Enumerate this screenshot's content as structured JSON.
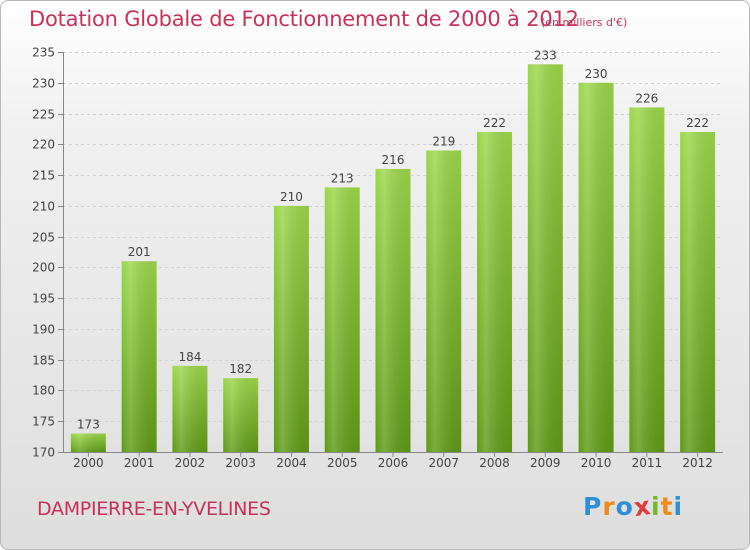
{
  "chart_data": {
    "type": "bar",
    "title": "Dotation Globale de Fonctionnement de 2000 à 2012",
    "units": "(en milliers d'€)",
    "categories": [
      "2000",
      "2001",
      "2002",
      "2003",
      "2004",
      "2005",
      "2006",
      "2007",
      "2008",
      "2009",
      "2010",
      "2011",
      "2012"
    ],
    "values": [
      173,
      201,
      184,
      182,
      210,
      213,
      216,
      219,
      222,
      233,
      230,
      226,
      222
    ],
    "ylim": [
      170,
      235
    ],
    "ytick_step": 5,
    "xlabel": "",
    "ylabel": "",
    "grid": true
  },
  "commune": "DAMPIERRE-EN-YVELINES",
  "logo": {
    "letters": [
      "P",
      "r",
      "o",
      "x",
      "i",
      "t",
      "i"
    ],
    "colors": [
      "#2f8fd6",
      "#f08a1c",
      "#2f8fd6",
      "#e13b3b",
      "#77b82a",
      "#f08a1c",
      "#2f8fd6"
    ]
  },
  "colors": {
    "bar_light": "#9cd64a",
    "bar_dark": "#5f9a16",
    "text_accent": "#c8325a",
    "axis_text": "#444444"
  }
}
